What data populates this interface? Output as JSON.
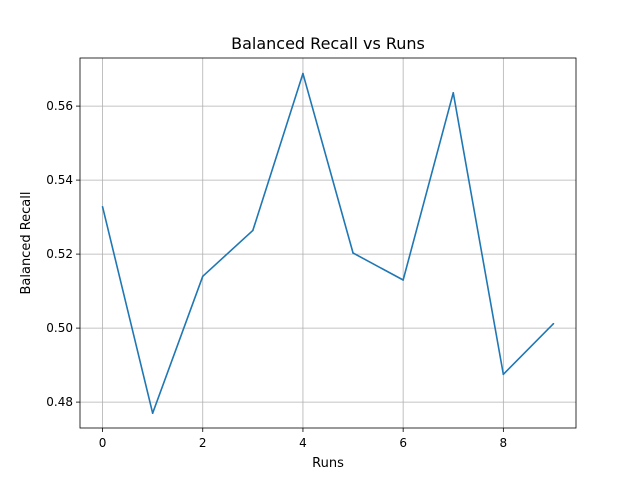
{
  "chart_data": {
    "type": "line",
    "title": "Balanced Recall vs Runs",
    "xlabel": "Runs",
    "ylabel": "Balanced Recall",
    "x": [
      0,
      1,
      2,
      3,
      4,
      5,
      6,
      7,
      8,
      9
    ],
    "series": [
      {
        "values": [
          0.5328,
          0.477,
          0.514,
          0.5264,
          0.5688,
          0.5203,
          0.513,
          0.5636,
          0.4875,
          0.5012
        ],
        "color": "#1f77b4"
      }
    ],
    "xlim": [
      -0.45,
      9.45
    ],
    "ylim": [
      0.473,
      0.573
    ],
    "xticks": [
      0,
      2,
      4,
      6,
      8
    ],
    "xtick_labels": [
      "0",
      "2",
      "4",
      "6",
      "8"
    ],
    "yticks": [
      0.48,
      0.5,
      0.52,
      0.54,
      0.56
    ],
    "ytick_labels": [
      "0.48",
      "0.50",
      "0.52",
      "0.54",
      "0.56"
    ],
    "grid": true
  }
}
